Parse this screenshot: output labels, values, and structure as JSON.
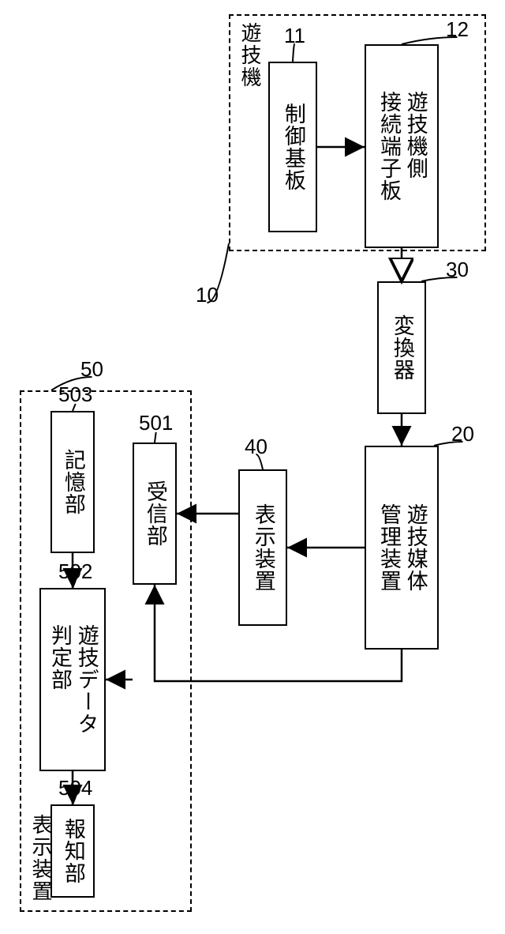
{
  "diagram": {
    "type": "flowchart",
    "background_color": "#ffffff",
    "stroke_color": "#000000",
    "font_size": 28,
    "label_font_size": 26,
    "containers": {
      "outer1": {
        "ref": "10",
        "label": "遊技機"
      },
      "outer2": {
        "ref": "50",
        "label": "表示装置"
      }
    },
    "nodes": {
      "n11": {
        "ref": "11",
        "label": "制御基板"
      },
      "n12": {
        "ref": "12",
        "label": "遊技機側\n接続端子板"
      },
      "n30": {
        "ref": "30",
        "label": "変換器"
      },
      "n20": {
        "ref": "20",
        "label": "遊技媒体\n管理装置"
      },
      "n40": {
        "ref": "40",
        "label": "表示装置"
      },
      "n501": {
        "ref": "501",
        "label": "受信部"
      },
      "n503": {
        "ref": "503",
        "label": "記憶部"
      },
      "n502": {
        "ref": "502",
        "label": "遊技データ\n判定部"
      },
      "n504": {
        "ref": "504",
        "label": "報知部"
      }
    },
    "edges": [
      {
        "from": "n11",
        "to": "n12",
        "head": "solid"
      },
      {
        "from": "n12",
        "to": "n30",
        "head": "open"
      },
      {
        "from": "n30",
        "to": "n20",
        "head": "solid"
      },
      {
        "from": "n20",
        "to": "n40",
        "head": "solid"
      },
      {
        "from": "n40",
        "to": "n501",
        "head": "solid"
      },
      {
        "from": "n20",
        "to": "n501",
        "head": "solid",
        "route": "L"
      },
      {
        "from": "n501",
        "to": "n502",
        "head": "solid"
      },
      {
        "from": "n503",
        "to": "n502",
        "head": "solid"
      },
      {
        "from": "n502",
        "to": "n504",
        "head": "solid"
      }
    ],
    "ref_pointers": [
      {
        "ref": "10",
        "style": "curve"
      },
      {
        "ref": "50",
        "style": "curve"
      },
      {
        "ref": "11",
        "style": "curve"
      },
      {
        "ref": "12",
        "style": "curve"
      },
      {
        "ref": "30",
        "style": "curve"
      },
      {
        "ref": "20",
        "style": "curve"
      },
      {
        "ref": "40",
        "style": "curve"
      },
      {
        "ref": "501",
        "style": "straight"
      },
      {
        "ref": "502",
        "style": "straight"
      },
      {
        "ref": "503",
        "style": "straight"
      },
      {
        "ref": "504",
        "style": "straight"
      }
    ]
  }
}
